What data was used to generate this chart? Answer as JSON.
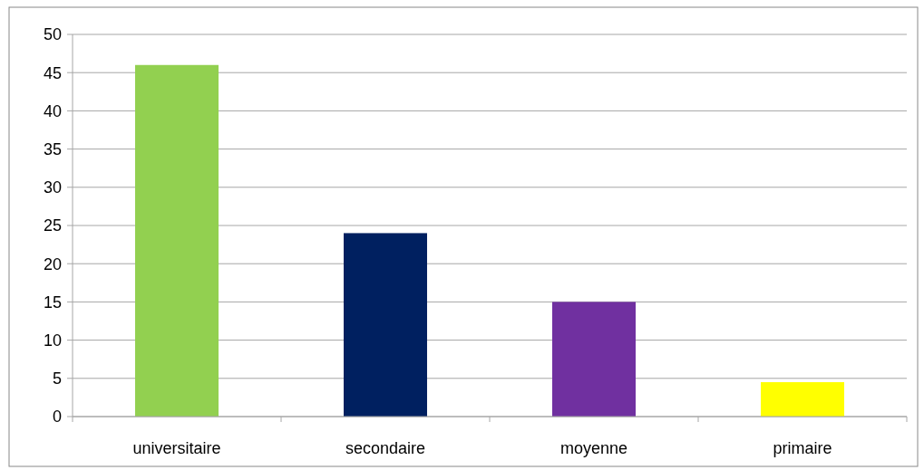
{
  "chart_data": {
    "type": "bar",
    "categories": [
      "universitaire",
      "secondaire",
      "moyenne",
      "primaire"
    ],
    "values": [
      46,
      24,
      15,
      4.5
    ],
    "colors": [
      "#92d050",
      "#002060",
      "#7030a0",
      "#ffff00"
    ],
    "ylim": [
      0,
      50
    ],
    "yticks": [
      0,
      5,
      10,
      15,
      20,
      25,
      30,
      35,
      40,
      45,
      50
    ],
    "grid": "y"
  }
}
